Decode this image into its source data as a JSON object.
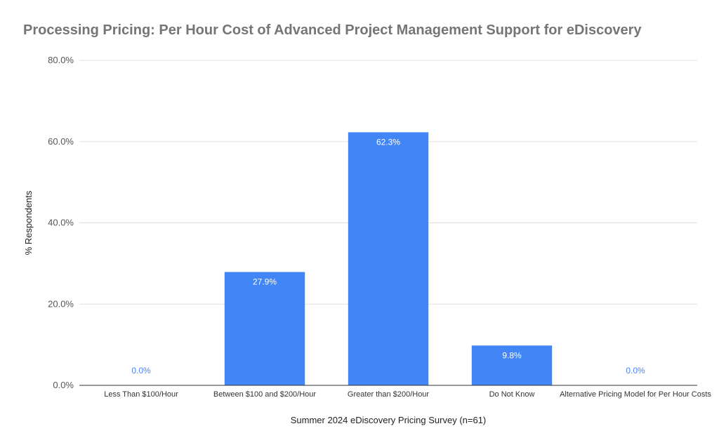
{
  "chart_data": {
    "type": "bar",
    "title": "Processing Pricing: Per Hour Cost of Advanced Project Management Support for eDiscovery",
    "xlabel": "Summer 2024 eDiscovery Pricing Survey (n=61)",
    "ylabel": "% Respondents",
    "categories": [
      "Less Than $100/Hour",
      "Between $100 and $200/Hour",
      "Greater than $200/Hour",
      "Do Not Know",
      "Alternative Pricing Model for Per Hour Costs"
    ],
    "values": [
      0.0,
      27.9,
      62.3,
      9.8,
      0.0
    ],
    "data_labels": [
      "0.0%",
      "27.9%",
      "62.3%",
      "9.8%",
      "0.0%"
    ],
    "ylim": [
      0,
      80
    ],
    "yticks": [
      0,
      20,
      40,
      60,
      80
    ],
    "ytick_labels": [
      "0.0%",
      "20.0%",
      "40.0%",
      "60.0%",
      "80.0%"
    ],
    "grid": true,
    "legend": "none",
    "colors": {
      "bar": "#4285F4",
      "label_inside": "#ffffff",
      "label_outside": "#4285F4",
      "grid": "#e0e0e0",
      "axis": "#333333"
    }
  }
}
